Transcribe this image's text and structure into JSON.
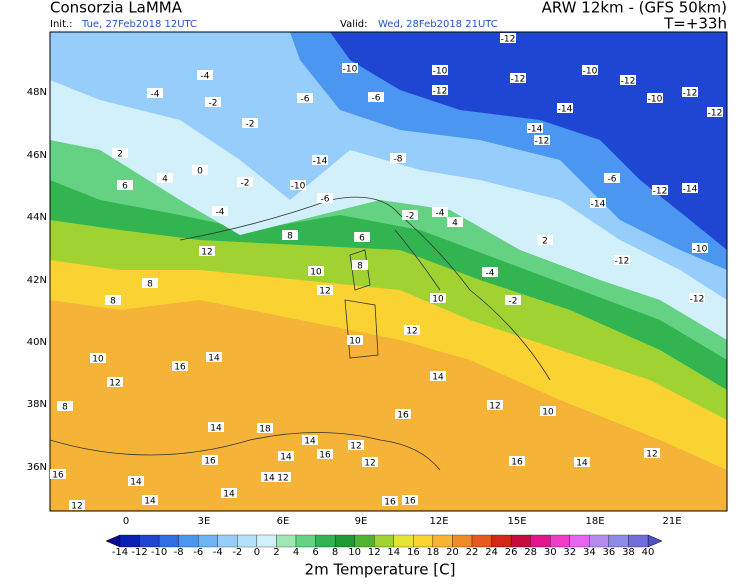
{
  "header": {
    "agency": "Consorzia LaMMA",
    "model": "ARW 12km - (GFS 50km)",
    "init_label": "Init.:",
    "init": "Tue, 27Feb2018 12UTC",
    "valid_label": "Valid:",
    "valid": "Wed, 28Feb2018 21UTC",
    "lead": "T=+33h"
  },
  "map": {
    "lat_labels": [
      "48N",
      "46N",
      "44N",
      "42N",
      "40N",
      "38N",
      "36N"
    ],
    "lon_labels": [
      "0",
      "3E",
      "6E",
      "9E",
      "12E",
      "15E",
      "18E",
      "21E"
    ],
    "temperature_labels": [
      -12,
      -10,
      -10,
      -12,
      -10,
      -12,
      -10,
      -12,
      -12,
      -14,
      -12,
      -4,
      -4,
      -2,
      -2,
      -6,
      -6,
      -14,
      -10,
      -6,
      -8,
      -14,
      -12,
      -6,
      -12,
      -14,
      -14,
      -12,
      -10,
      -12,
      -4,
      -2,
      -4,
      -2,
      0,
      2,
      4,
      -4,
      -2,
      6,
      6,
      2,
      4,
      8,
      8,
      10,
      12,
      12,
      8,
      8,
      10,
      12,
      10,
      14,
      16,
      14,
      10,
      12,
      8,
      12,
      16,
      10,
      14,
      18,
      14,
      12,
      16,
      14,
      16,
      12,
      16,
      14,
      12,
      16,
      14,
      14,
      14,
      12,
      16,
      16,
      12,
      14
    ]
  },
  "colorbar": {
    "title": "2m Temperature [C]",
    "ticks": [
      -14,
      -12,
      -10,
      -8,
      -6,
      -4,
      -2,
      0,
      2,
      4,
      6,
      8,
      10,
      12,
      14,
      16,
      18,
      20,
      22,
      24,
      26,
      28,
      30,
      32,
      34,
      36,
      38,
      40
    ],
    "colors": [
      "#0a1fb4",
      "#1f46d2",
      "#2d6ee6",
      "#4a96f0",
      "#6eb4f5",
      "#96cdfa",
      "#b4e1fa",
      "#d2f0fa",
      "#a0e6b4",
      "#64d282",
      "#32b450",
      "#1e9b32",
      "#50b432",
      "#a0d232",
      "#e6e632",
      "#fad232",
      "#fab432",
      "#f08c28",
      "#e65a1e",
      "#d22814",
      "#c80a3c",
      "#e6148c",
      "#f03cc8",
      "#e664f0",
      "#b48cf0",
      "#8c8ce6",
      "#6e6edc"
    ],
    "under_color": "#0a0a96",
    "over_color": "#5050c8"
  }
}
